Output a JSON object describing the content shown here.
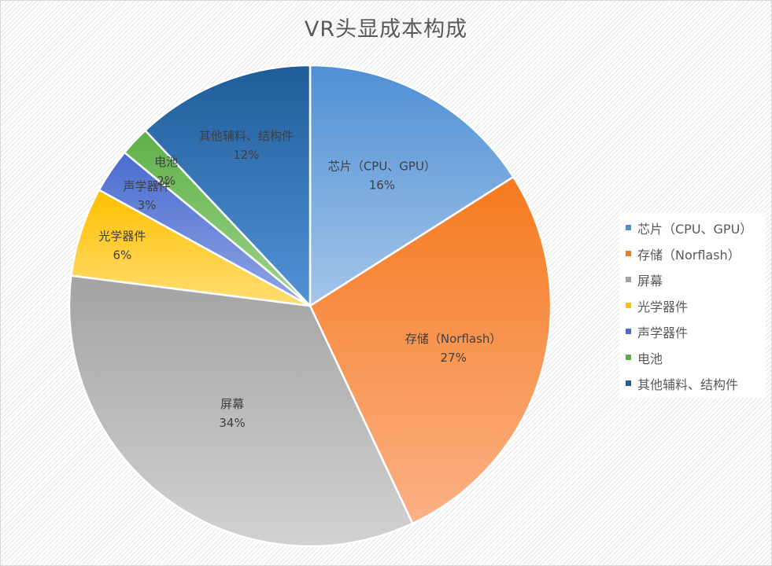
{
  "chart_data": {
    "type": "pie",
    "title": "VR头显成本构成",
    "legend_position": "right",
    "slices": [
      {
        "name": "芯片（CPU、GPU）",
        "label_name": "芯片（CPU、GPU）",
        "value": 16,
        "value_label": "16%",
        "color_dark": "#4f8fd4",
        "color_light": "#a4c6ea"
      },
      {
        "name": "存储（Norflash）",
        "label_name": "存储（Norflash）",
        "value": 27,
        "value_label": "27%",
        "color_dark": "#f57a1e",
        "color_light": "#fbb186"
      },
      {
        "name": "屏幕",
        "label_name": "屏幕",
        "value": 34,
        "value_label": "34%",
        "color_dark": "#a3a3a3",
        "color_light": "#d2d2d2"
      },
      {
        "name": "光学器件",
        "label_name": "光学器件",
        "value": 6,
        "value_label": "6%",
        "color_dark": "#ffc000",
        "color_light": "#ffdd73"
      },
      {
        "name": "声学器件",
        "label_name": "声学器件",
        "value": 3,
        "value_label": "3%",
        "color_dark": "#4a6ccf",
        "color_light": "#8fa5e3"
      },
      {
        "name": "电池",
        "label_name": "电池",
        "value": 2,
        "value_label": "2%",
        "color_dark": "#5db048",
        "color_light": "#9fd58c"
      },
      {
        "name": "其他辅料、结构件",
        "label_name": "其他辅料、结构件",
        "value": 12,
        "value_label": "12%",
        "color_dark": "#1f5c99",
        "color_light": "#5393d6"
      }
    ]
  }
}
